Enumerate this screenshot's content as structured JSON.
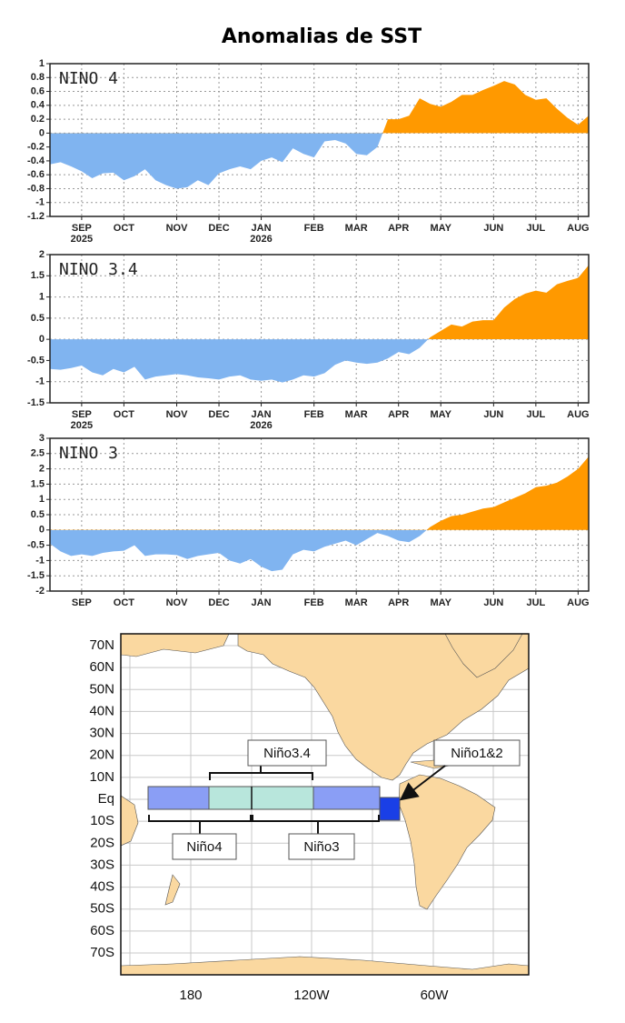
{
  "title": "Anomalias de SST",
  "chart_data": [
    {
      "type": "area",
      "title": "NINO 4",
      "categories": [
        null,
        null,
        null,
        "SEP",
        null,
        null,
        null,
        "OCT",
        null,
        null,
        null,
        null,
        "NOV",
        null,
        null,
        null,
        "DEC",
        null,
        null,
        null,
        "JAN",
        null,
        null,
        null,
        null,
        "FEB",
        null,
        null,
        null,
        "MAR",
        null,
        null,
        null,
        "APR",
        null,
        null,
        null,
        "MAY",
        null,
        null,
        null,
        null,
        "JUN",
        null,
        null,
        null,
        "JUL",
        null,
        null,
        null,
        "AUG",
        null
      ],
      "sublabels": [
        null,
        null,
        null,
        "2025",
        null,
        null,
        null,
        null,
        null,
        null,
        null,
        null,
        null,
        null,
        null,
        null,
        null,
        null,
        null,
        null,
        "2026",
        null,
        null,
        null,
        null,
        null,
        null,
        null,
        null,
        null,
        null,
        null,
        null,
        null,
        null,
        null,
        null,
        null,
        null,
        null,
        null,
        null,
        null,
        null,
        null,
        null,
        null,
        null,
        null,
        null,
        null,
        null
      ],
      "values": [
        -0.45,
        -0.42,
        -0.48,
        -0.55,
        -0.65,
        -0.58,
        -0.57,
        -0.68,
        -0.62,
        -0.52,
        -0.68,
        -0.75,
        -0.8,
        -0.78,
        -0.68,
        -0.75,
        -0.58,
        -0.52,
        -0.48,
        -0.52,
        -0.4,
        -0.35,
        -0.42,
        -0.22,
        -0.3,
        -0.35,
        -0.12,
        -0.1,
        -0.15,
        -0.3,
        -0.32,
        -0.2,
        0.2,
        0.2,
        0.25,
        0.5,
        0.42,
        0.38,
        0.45,
        0.55,
        0.55,
        0.62,
        0.68,
        0.75,
        0.7,
        0.55,
        0.48,
        0.5,
        0.35,
        0.22,
        0.12,
        0.25
      ],
      "ylim": [
        -1.2,
        1
      ],
      "yticks": [
        -1.2,
        -1,
        -0.8,
        -0.6,
        -0.4,
        -0.2,
        0,
        0.2,
        0.4,
        0.6,
        0.8,
        1
      ],
      "pos_color": "#ff9900",
      "neg_color": "#80b4f0",
      "grid": true
    },
    {
      "type": "area",
      "title": "NINO 3.4",
      "categories": [
        null,
        null,
        null,
        "SEP",
        null,
        null,
        null,
        "OCT",
        null,
        null,
        null,
        null,
        "NOV",
        null,
        null,
        null,
        "DEC",
        null,
        null,
        null,
        "JAN",
        null,
        null,
        null,
        null,
        "FEB",
        null,
        null,
        null,
        "MAR",
        null,
        null,
        null,
        "APR",
        null,
        null,
        null,
        "MAY",
        null,
        null,
        null,
        null,
        "JUN",
        null,
        null,
        null,
        "JUL",
        null,
        null,
        null,
        "AUG",
        null
      ],
      "sublabels": [
        null,
        null,
        null,
        "2025",
        null,
        null,
        null,
        null,
        null,
        null,
        null,
        null,
        null,
        null,
        null,
        null,
        null,
        null,
        null,
        null,
        "2026",
        null,
        null,
        null,
        null,
        null,
        null,
        null,
        null,
        null,
        null,
        null,
        null,
        null,
        null,
        null,
        null,
        null,
        null,
        null,
        null,
        null,
        null,
        null,
        null,
        null,
        null,
        null,
        null,
        null,
        null,
        null
      ],
      "values": [
        -0.7,
        -0.72,
        -0.68,
        -0.62,
        -0.78,
        -0.85,
        -0.7,
        -0.78,
        -0.65,
        -0.95,
        -0.88,
        -0.85,
        -0.82,
        -0.85,
        -0.9,
        -0.92,
        -0.95,
        -0.88,
        -0.85,
        -0.95,
        -0.98,
        -0.95,
        -1.02,
        -0.95,
        -0.85,
        -0.88,
        -0.8,
        -0.6,
        -0.5,
        -0.55,
        -0.58,
        -0.55,
        -0.45,
        -0.3,
        -0.35,
        -0.2,
        0.05,
        0.2,
        0.35,
        0.3,
        0.42,
        0.45,
        0.45,
        0.75,
        0.95,
        1.08,
        1.15,
        1.1,
        1.3,
        1.38,
        1.45,
        1.75
      ],
      "ylim": [
        -1.5,
        2
      ],
      "yticks": [
        -1.5,
        -1,
        -0.5,
        0,
        0.5,
        1,
        1.5,
        2
      ],
      "pos_color": "#ff9900",
      "neg_color": "#80b4f0",
      "grid": true
    },
    {
      "type": "area",
      "title": "NINO 3",
      "categories": [
        null,
        null,
        null,
        "SEP",
        null,
        null,
        null,
        "OCT",
        null,
        null,
        null,
        null,
        "NOV",
        null,
        null,
        null,
        "DEC",
        null,
        null,
        null,
        "JAN",
        null,
        null,
        null,
        null,
        "FEB",
        null,
        null,
        null,
        "MAR",
        null,
        null,
        null,
        "APR",
        null,
        null,
        null,
        "MAY",
        null,
        null,
        null,
        null,
        "JUN",
        null,
        null,
        null,
        "JUL",
        null,
        null,
        null,
        "AUG",
        null
      ],
      "values": [
        -0.45,
        -0.7,
        -0.85,
        -0.8,
        -0.85,
        -0.75,
        -0.7,
        -0.68,
        -0.5,
        -0.85,
        -0.8,
        -0.8,
        -0.82,
        -0.95,
        -0.85,
        -0.8,
        -0.75,
        -1.0,
        -1.1,
        -0.95,
        -1.2,
        -1.35,
        -1.3,
        -0.8,
        -0.65,
        -0.7,
        -0.55,
        -0.45,
        -0.35,
        -0.5,
        -0.3,
        -0.1,
        -0.2,
        -0.35,
        -0.4,
        -0.2,
        0.1,
        0.3,
        0.45,
        0.5,
        0.6,
        0.7,
        0.75,
        0.9,
        1.05,
        1.2,
        1.4,
        1.45,
        1.55,
        1.75,
        2.0,
        2.4
      ],
      "ylim": [
        -2,
        3
      ],
      "yticks": [
        -2,
        -1.5,
        -1,
        -0.5,
        0,
        0.5,
        1,
        1.5,
        2,
        2.5,
        3
      ],
      "pos_color": "#ff9900",
      "neg_color": "#80b4f0",
      "grid": true
    }
  ],
  "map": {
    "lat_labels": [
      "70N",
      "60N",
      "50N",
      "40N",
      "30N",
      "20N",
      "10N",
      "Eq",
      "10S",
      "20S",
      "30S",
      "40S",
      "50S",
      "60S",
      "70S"
    ],
    "lon_labels": [
      "180",
      "120W",
      "60W"
    ],
    "regions": {
      "nino34": "Niño3.4",
      "nino12": "Niño1&2",
      "nino4": "Niño4",
      "nino3": "Niño3"
    }
  }
}
